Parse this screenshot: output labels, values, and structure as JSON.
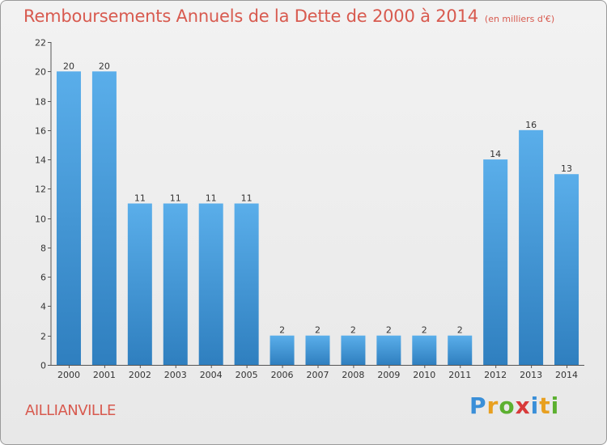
{
  "chart_data": {
    "type": "bar",
    "title": "Remboursements Annuels de la Dette de 2000 à 2014",
    "subtitle": "(en milliers d'€)",
    "categories": [
      "2000",
      "2001",
      "2002",
      "2003",
      "2004",
      "2005",
      "2006",
      "2007",
      "2008",
      "2009",
      "2010",
      "2011",
      "2012",
      "2013",
      "2014"
    ],
    "values": [
      20,
      20,
      11,
      11,
      11,
      11,
      2,
      2,
      2,
      2,
      2,
      2,
      14,
      16,
      13
    ],
    "xlabel": "",
    "ylabel": "",
    "ylim": [
      0,
      22
    ],
    "yticks": [
      0,
      2,
      4,
      6,
      8,
      10,
      12,
      14,
      16,
      18,
      20,
      22
    ],
    "grid": false,
    "bar_color_top": "#5aaeea",
    "bar_color_bottom": "#2f7fbf"
  },
  "footer": {
    "town": "AILLIANVILLE",
    "logo": "Proxiti",
    "logo_colors": [
      "#3a8fd8",
      "#e8a020",
      "#5cb030",
      "#d83a3a",
      "#3a8fd8",
      "#e8a020",
      "#5cb030"
    ]
  }
}
